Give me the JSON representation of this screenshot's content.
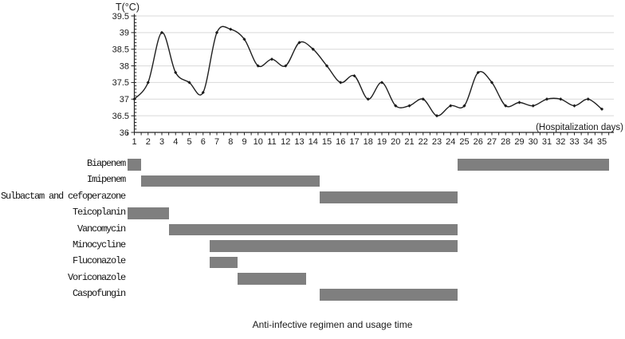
{
  "chart_data": {
    "type": "line",
    "title": "",
    "ylabel": "T(°C)",
    "xlabel": "(Hospitalization days)",
    "x": [
      1,
      2,
      3,
      4,
      5,
      6,
      7,
      8,
      9,
      10,
      11,
      12,
      13,
      14,
      15,
      16,
      17,
      18,
      19,
      20,
      21,
      22,
      23,
      24,
      25,
      26,
      27,
      28,
      29,
      30,
      31,
      32,
      33,
      34,
      35
    ],
    "values": [
      37.0,
      37.5,
      39.0,
      37.8,
      37.5,
      37.2,
      39.0,
      39.1,
      38.8,
      38.0,
      38.2,
      38.0,
      38.7,
      38.5,
      38.0,
      37.5,
      37.7,
      37.0,
      37.5,
      36.8,
      36.8,
      37.0,
      36.5,
      36.8,
      36.8,
      37.8,
      37.5,
      36.8,
      36.9,
      36.8,
      37.0,
      37.0,
      36.8,
      37.0,
      36.7
    ],
    "ylim": [
      36,
      39.5
    ],
    "ytick_step": 0.5,
    "xtick_labels": [
      "1",
      "2",
      "3",
      "4",
      "5",
      "6",
      "7",
      "8",
      "9",
      "10",
      "11",
      "12",
      "13",
      "14",
      "15",
      "16",
      "17",
      "18",
      "19",
      "20",
      "21",
      "22",
      "23",
      "24",
      "25",
      "26",
      "27",
      "28",
      "29",
      "30",
      "31",
      "32",
      "33",
      "34",
      "35"
    ],
    "grid": true,
    "legend": "none",
    "line_color": "#1f1f1f",
    "marker": "diamond",
    "gridline_color": "#d9d9d9",
    "axis_color": "#262626"
  },
  "gantt": {
    "caption": "Anti-infective regimen and usage time",
    "bar_color": "#7f7f7f",
    "axis_day_min": 0.5,
    "axis_day_max": 35.5,
    "rows": [
      {
        "label": "Biapenem",
        "bars": [
          [
            0.5,
            1.5
          ],
          [
            24.5,
            35.5
          ]
        ]
      },
      {
        "label": "Imipenem",
        "bars": [
          [
            1.5,
            14.5
          ]
        ]
      },
      {
        "label": "Sulbactam and cefoperazone",
        "bars": [
          [
            14.5,
            24.5
          ]
        ]
      },
      {
        "label": "Teicoplanin",
        "bars": [
          [
            0.5,
            3.5
          ]
        ]
      },
      {
        "label": "Vancomycin",
        "bars": [
          [
            3.5,
            24.5
          ]
        ]
      },
      {
        "label": "Minocycline",
        "bars": [
          [
            6.5,
            24.5
          ]
        ]
      },
      {
        "label": "Fluconazole",
        "bars": [
          [
            6.5,
            8.5
          ]
        ]
      },
      {
        "label": "Voriconazole",
        "bars": [
          [
            8.5,
            13.5
          ]
        ]
      },
      {
        "label": "Caspofungin",
        "bars": [
          [
            14.5,
            24.5
          ]
        ]
      }
    ]
  }
}
